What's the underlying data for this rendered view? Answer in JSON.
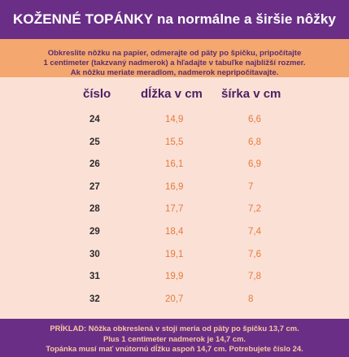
{
  "header": {
    "title_upper": "KOŽENNÉ TOPÁNKY",
    "title_rest": " na normálne a širšie nôžky"
  },
  "intro": {
    "line1": "Obkreslite nôžku na papier, odmerajte od päty po špičku, pripočítajte",
    "line2": "1 centimeter (takzvaný nadmerok) a hľadajte v tabuľke najbližší rozmer.",
    "line3": "Ak nôžku meriate meradlom, nadmerok nepripočítavajte."
  },
  "table": {
    "headers": {
      "cislo": "číslo",
      "dlzka": "dĺžka v cm",
      "sirka": "šírka v cm"
    },
    "rows": [
      {
        "cislo": "24",
        "dlzka": "14,9",
        "sirka": "6,6"
      },
      {
        "cislo": "25",
        "dlzka": "15,5",
        "sirka": "6,8"
      },
      {
        "cislo": "26",
        "dlzka": "16,1",
        "sirka": "6,9"
      },
      {
        "cislo": "27",
        "dlzka": "16,9",
        "sirka": "7"
      },
      {
        "cislo": "28",
        "dlzka": "17,7",
        "sirka": "7,2"
      },
      {
        "cislo": "29",
        "dlzka": "18,4",
        "sirka": "7,4"
      },
      {
        "cislo": "30",
        "dlzka": "19,1",
        "sirka": "7,6"
      },
      {
        "cislo": "31",
        "dlzka": "19,9",
        "sirka": "7,8"
      },
      {
        "cislo": "32",
        "dlzka": "20,7",
        "sirka": "8"
      }
    ]
  },
  "footer": {
    "line1": "PRÍKLAD: Nôžka obkreslená v stoji meria od päty po špičku 13,7 cm.",
    "line2": "Plus 1 centimeter nadmerok je 14,7 cm.",
    "line3": "Topánka musí mať vnútornú dĺžku aspoň 14,7 cm. Potrebujete číslo 24."
  },
  "colors": {
    "purple": "#6a2e86",
    "orange": "#f4a76e",
    "background": "#fbe0d6",
    "value_orange": "#e57b3c"
  }
}
